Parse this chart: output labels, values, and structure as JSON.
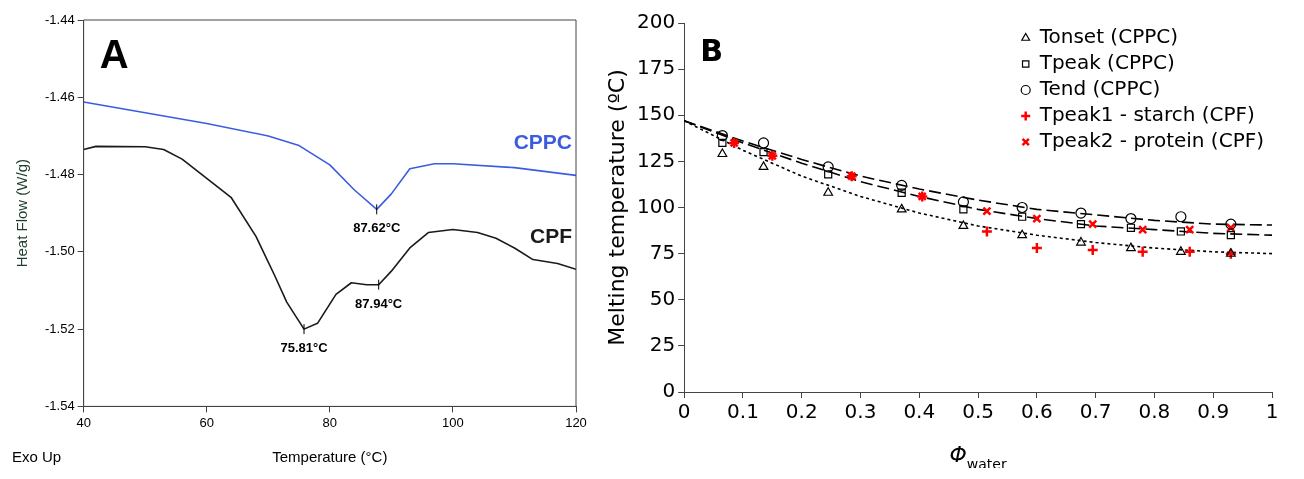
{
  "chart_data": [
    {
      "type": "line",
      "title": "A",
      "xlabel": "Temperature (°C)",
      "ylabel": "Heat Flow (W/g)",
      "xlim": [
        40,
        120
      ],
      "xticks": [
        40,
        60,
        80,
        100,
        120
      ],
      "ylim": [
        -1.54,
        -1.44
      ],
      "yticks": [
        {
          "value": -1.54,
          "label": "-1.54"
        },
        {
          "value": -1.52,
          "label": "-1.52"
        },
        {
          "value": -1.5,
          "label": "-1.50"
        },
        {
          "value": -1.48,
          "label": "-1.48"
        },
        {
          "value": -1.46,
          "label": "-1.46"
        },
        {
          "value": -1.44,
          "label": "-1.44"
        }
      ],
      "grid": false,
      "legend": false,
      "marker": "none",
      "line_style": "solid",
      "series": [
        {
          "name": "CPPC",
          "color": "#3c5ce0",
          "x": [
            40,
            50,
            60,
            70,
            75,
            80,
            84,
            87.62,
            90,
            93,
            97,
            100,
            110,
            120
          ],
          "values": [
            -1.4612,
            -1.464,
            -1.4668,
            -1.47,
            -1.4725,
            -1.4775,
            -1.484,
            -1.489,
            -1.485,
            -1.4785,
            -1.4772,
            -1.4772,
            -1.4782,
            -1.4802
          ]
        },
        {
          "name": "CPF",
          "color": "#1a1a1a",
          "x": [
            40,
            42,
            50,
            53,
            56,
            60,
            64,
            68,
            71,
            73,
            75.81,
            78,
            81,
            83.5,
            86,
            87.94,
            90,
            93,
            96,
            100,
            104,
            107,
            110,
            113,
            117,
            120
          ],
          "values": [
            -1.4735,
            -1.4727,
            -1.4728,
            -1.4735,
            -1.476,
            -1.481,
            -1.486,
            -1.496,
            -1.506,
            -1.513,
            -1.52,
            -1.5185,
            -1.511,
            -1.508,
            -1.5085,
            -1.5085,
            -1.505,
            -1.499,
            -1.495,
            -1.4942,
            -1.495,
            -1.4965,
            -1.499,
            -1.502,
            -1.503,
            -1.5045
          ]
        }
      ],
      "annotations": [
        "Exo Up",
        {
          "text": "87.62°C",
          "x": 87.62,
          "y": -1.489
        },
        {
          "text": "87.94°C",
          "x": 87.94,
          "y": -1.5085
        },
        {
          "text": "75.81°C",
          "x": 75.81,
          "y": -1.52
        }
      ]
    },
    {
      "type": "scatter",
      "title": "B",
      "xlabel": "Φ$_{water}$",
      "ylabel": "Melting temperature (ºC)",
      "xlim": [
        0,
        1
      ],
      "xticks": [
        0,
        0.1,
        0.2,
        0.3,
        0.4,
        0.5,
        0.6,
        0.7,
        0.8,
        0.9,
        1
      ],
      "ylim": [
        0,
        200
      ],
      "yticks": [
        0,
        25,
        50,
        75,
        100,
        125,
        150,
        175,
        200
      ],
      "grid": false,
      "legend": "top right",
      "series": [
        {
          "name": "Tonset (CPPC)",
          "color": "#000000",
          "marker": "triangle",
          "x": [
            0.065,
            0.135,
            0.245,
            0.37,
            0.475,
            0.575,
            0.675,
            0.76,
            0.845,
            0.93
          ],
          "values": [
            129,
            122,
            108,
            99,
            90,
            85,
            81,
            78,
            76,
            75
          ]
        },
        {
          "name": "Tpeak (CPPC)",
          "color": "#000000",
          "marker": "square",
          "x": [
            0.065,
            0.135,
            0.245,
            0.37,
            0.475,
            0.575,
            0.675,
            0.76,
            0.845,
            0.93
          ],
          "values": [
            135,
            130,
            118,
            108,
            99,
            95,
            91,
            89,
            87,
            85
          ]
        },
        {
          "name": "Tend (CPPC)",
          "color": "#000000",
          "marker": "circle",
          "x": [
            0.065,
            0.135,
            0.245,
            0.37,
            0.475,
            0.575,
            0.675,
            0.76,
            0.845,
            0.93
          ],
          "values": [
            139,
            135,
            122,
            112,
            103,
            100,
            97,
            94,
            95,
            91
          ]
        },
        {
          "name": "Tpeak1 - starch (CPF)",
          "color": "#ff0000",
          "marker": "cross",
          "x": [
            0.085,
            0.15,
            0.285,
            0.405,
            0.515,
            0.6,
            0.695,
            0.78,
            0.86,
            0.93
          ],
          "values": [
            135,
            128,
            117,
            106,
            87,
            78,
            77,
            76,
            76,
            75
          ]
        },
        {
          "name": "Tpeak2 - protein (CPF)",
          "color": "#ff0000",
          "marker": "x",
          "x": [
            0.085,
            0.15,
            0.285,
            0.405,
            0.515,
            0.6,
            0.695,
            0.78,
            0.86,
            0.93
          ],
          "values": [
            135,
            128,
            117,
            106,
            98,
            94,
            91,
            88,
            88,
            89
          ]
        },
        {
          "type": "line",
          "color": "#000000",
          "marker": "none",
          "line_style": "dotted",
          "x": [
            0,
            0.1,
            0.2,
            0.3,
            0.4,
            0.5,
            0.6,
            0.7,
            0.8,
            0.9,
            1
          ],
          "values": [
            147,
            131,
            117,
            106,
            97,
            90,
            85,
            81,
            78,
            76,
            75
          ]
        },
        {
          "type": "line",
          "color": "#000000",
          "marker": "none",
          "line_style": "dashed",
          "x": [
            0,
            0.1,
            0.2,
            0.3,
            0.4,
            0.5,
            0.6,
            0.7,
            0.8,
            0.9,
            1
          ],
          "values": [
            147,
            135,
            124,
            114,
            106,
            99,
            94,
            90,
            88,
            86,
            85
          ]
        },
        {
          "type": "line",
          "color": "#000000",
          "marker": "none",
          "line_style": "dashed",
          "x": [
            0,
            0.1,
            0.2,
            0.3,
            0.4,
            0.5,
            0.6,
            0.7,
            0.8,
            0.9,
            1
          ],
          "values": [
            147,
            136,
            126,
            117,
            110,
            104,
            99,
            96,
            93,
            91,
            90.5
          ]
        }
      ]
    }
  ]
}
